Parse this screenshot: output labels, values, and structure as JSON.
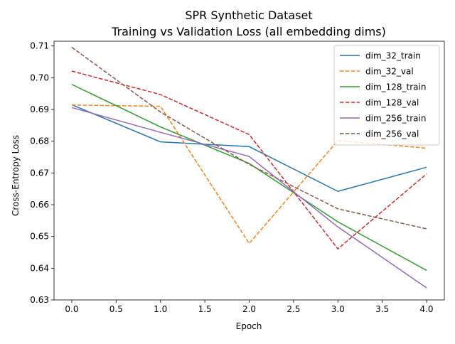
{
  "chart_data": {
    "type": "line",
    "title": "SPR Synthetic Dataset",
    "subtitle": "Training vs Validation Loss (all embedding dims)",
    "xlabel": "Epoch",
    "ylabel": "Cross-Entropy Loss",
    "xlim": [
      -0.2,
      4.2
    ],
    "ylim": [
      0.63,
      0.7115
    ],
    "xticks": [
      "0.0",
      "0.5",
      "1.0",
      "1.5",
      "2.0",
      "2.5",
      "3.0",
      "3.5",
      "4.0"
    ],
    "yticks": [
      "0.63",
      "0.64",
      "0.65",
      "0.66",
      "0.67",
      "0.68",
      "0.69",
      "0.70",
      "0.71"
    ],
    "grid": false,
    "legend_position": "top-right",
    "x": [
      0,
      1,
      2,
      3,
      4
    ],
    "series": [
      {
        "name": "dim_32_train",
        "values": [
          0.6915,
          0.6798,
          0.6783,
          0.6642,
          0.6718
        ],
        "color": "#1f77b4",
        "style": "solid"
      },
      {
        "name": "dim_32_val",
        "values": [
          0.6914,
          0.691,
          0.6478,
          0.6802,
          0.6778
        ],
        "color": "#ff7f0e",
        "style": "dashed"
      },
      {
        "name": "dim_128_train",
        "values": [
          0.6979,
          0.6845,
          0.673,
          0.6546,
          0.6393
        ],
        "color": "#2ca02c",
        "style": "solid"
      },
      {
        "name": "dim_128_val",
        "values": [
          0.7021,
          0.6947,
          0.6821,
          0.6461,
          0.6697
        ],
        "color": "#d62728",
        "style": "dashed"
      },
      {
        "name": "dim_256_train",
        "values": [
          0.6906,
          0.6828,
          0.6752,
          0.653,
          0.6338
        ],
        "color": "#9467bd",
        "style": "solid"
      },
      {
        "name": "dim_256_val",
        "values": [
          0.7096,
          0.6892,
          0.6727,
          0.6587,
          0.6524
        ],
        "color": "#8c564b",
        "style": "dashed"
      }
    ]
  }
}
